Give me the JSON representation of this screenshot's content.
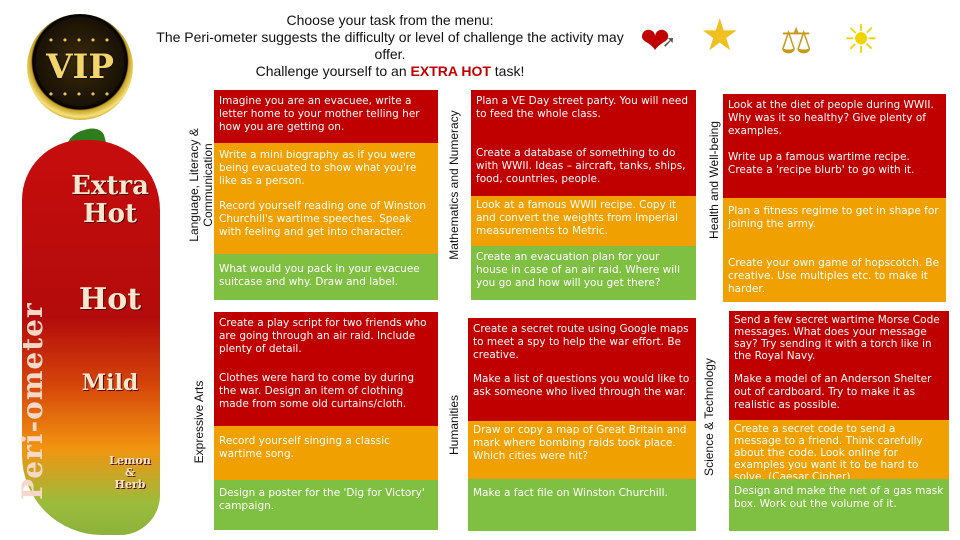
{
  "header": {
    "line1": "Choose your task from the menu:",
    "line2": "The Peri-ometer suggests the difficulty or level of challenge the activity may offer.",
    "line3_prefix": "Challenge yourself to an",
    "line3_hot": "EXTRA HOT",
    "line3_suffix": "task!"
  },
  "badge": {
    "text": "VIP",
    "dots": "• • • • •"
  },
  "chili": {
    "title": "Peri-ometer",
    "levels": [
      "Extra Hot",
      "Hot",
      "Mild",
      "Lemon & Herb"
    ]
  },
  "icons": [
    "heart-with-arrow-icon",
    "shooting-star-icon",
    "scales-icon",
    "light-bulb-icon"
  ],
  "colors": {
    "extra_hot": "#c00000",
    "hot": "#f0a000",
    "mild": "#7fc042"
  },
  "sections": {
    "language": {
      "label": "Language, Literacy & Communication",
      "tasks": [
        "Imagine you are an evacuee, write a letter home to your mother telling her how you are getting on.",
        "Write a mini biography as if you were being evacuated to show what you're like as a person.",
        "Record yourself reading one of Winston Churchill's wartime speeches. Speak with feeling and get into character.",
        "What would you pack in your evacuee suitcase and why. Draw and label."
      ]
    },
    "maths": {
      "label": "Mathematics and Numeracy",
      "tasks": [
        "Plan a VE Day street party. You will need to feed the whole class.",
        "Create a database of something to do with WWII. Ideas – aircraft, tanks, ships, food, countries, people.",
        "Look at a famous WWII recipe. Copy it and convert the weights from Imperial measurements to Metric.",
        "Create an evacuation plan for your house in case of an air raid. Where will you go and how will you get there?"
      ]
    },
    "health": {
      "label": "Health and Well-being",
      "tasks": [
        "Look at the diet of people during WWII. Why was it so healthy? Give plenty of examples.",
        "Write up a famous wartime recipe. Create a 'recipe blurb' to go with it.",
        "Plan a fitness regime to get in shape for joining the army.",
        "Create your own game of hopscotch. Be creative. Use multiples etc. to make it harder."
      ]
    },
    "arts": {
      "label": "Expressive Arts",
      "tasks": [
        "Create a play script for two friends who are going through an air raid. Include plenty of detail.",
        "Clothes were hard to come by during the war. Design an item of clothing made from some old curtains/cloth.",
        "Record yourself singing a classic wartime song.",
        "Design a poster for the 'Dig for Victory' campaign."
      ]
    },
    "humanities": {
      "label": "Humanities",
      "tasks": [
        "Create a secret route using Google maps to meet a spy to help the war effort. Be creative.",
        "Make a list of questions you would like to ask someone who lived through the war.",
        "Draw or copy a map of Great Britain and mark where bombing raids took place. Which cities were hit?",
        "Make a fact file on Winston Churchill."
      ]
    },
    "science": {
      "label": "Science & Technology",
      "tasks": [
        "Send a few secret wartime Morse Code messages. What does your message say? Try sending it with a torch like in the Royal Navy.",
        "Make a model of an Anderson Shelter out of cardboard. Try to make it as realistic as possible.",
        "Create a secret code to send a message to a friend. Think carefully about the code. Look online for examples you want it to be hard to solve. (Caesar Cipher)",
        "Design and make the net of a gas mask box. Work out the volume of it."
      ]
    }
  }
}
